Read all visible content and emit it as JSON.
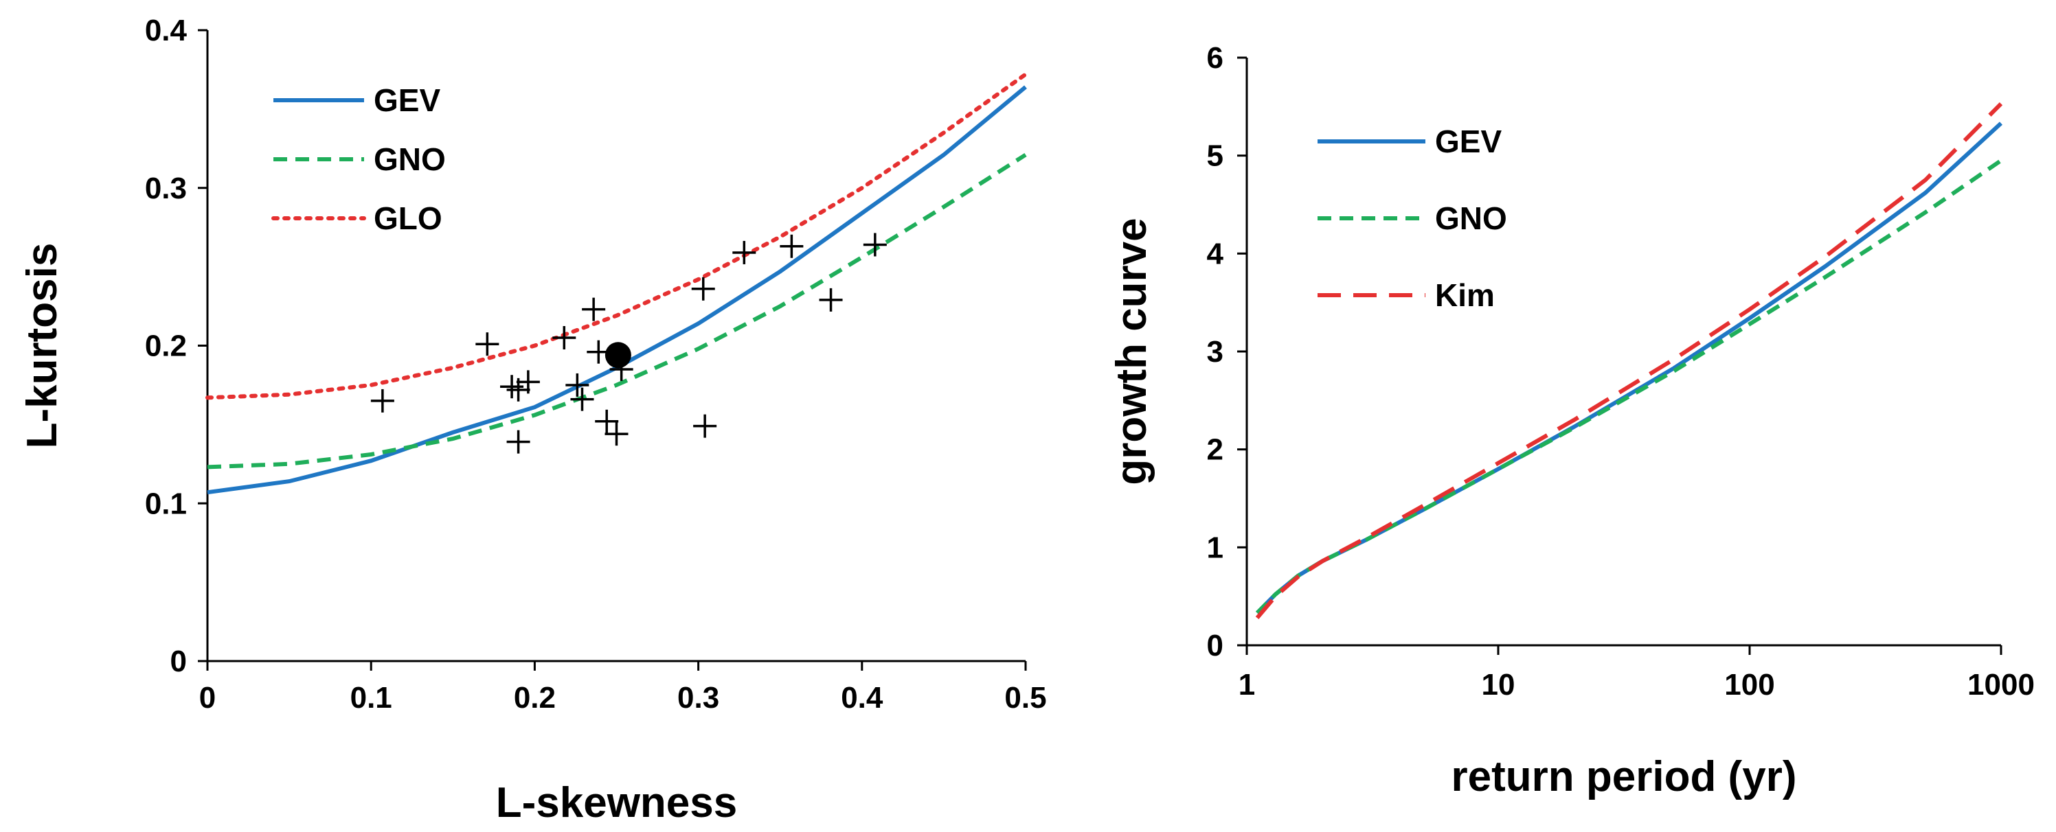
{
  "chart_data": [
    {
      "id": "left",
      "type": "line",
      "xlabel": "L-skewness",
      "ylabel": "L-kurtosis",
      "xlim": [
        0,
        0.5
      ],
      "ylim": [
        0,
        0.4
      ],
      "xticks": [
        "0",
        "0.1",
        "0.2",
        "0.3",
        "0.4",
        "0.5"
      ],
      "yticks": [
        "0",
        "0.1",
        "0.2",
        "0.3",
        "0.4"
      ],
      "legend": [
        "GEV",
        "GNO",
        "GLO"
      ],
      "series": [
        {
          "name": "GEV",
          "color": "#1f77c4",
          "style": "solid",
          "x": [
            0,
            0.05,
            0.1,
            0.15,
            0.2,
            0.25,
            0.3,
            0.35,
            0.4,
            0.45,
            0.5
          ],
          "y": [
            0.107,
            0.114,
            0.127,
            0.145,
            0.161,
            0.186,
            0.214,
            0.247,
            0.284,
            0.321,
            0.364
          ]
        },
        {
          "name": "GNO",
          "color": "#1fae5a",
          "style": "dashed",
          "x": [
            0,
            0.05,
            0.1,
            0.15,
            0.2,
            0.25,
            0.3,
            0.35,
            0.4,
            0.45,
            0.5
          ],
          "y": [
            0.123,
            0.125,
            0.131,
            0.141,
            0.156,
            0.175,
            0.198,
            0.225,
            0.256,
            0.288,
            0.321
          ]
        },
        {
          "name": "GLO",
          "color": "#e53030",
          "style": "dotted",
          "x": [
            0,
            0.05,
            0.1,
            0.15,
            0.2,
            0.25,
            0.3,
            0.35,
            0.4,
            0.45,
            0.5
          ],
          "y": [
            0.167,
            0.169,
            0.175,
            0.186,
            0.2,
            0.219,
            0.242,
            0.269,
            0.3,
            0.335,
            0.372
          ]
        }
      ],
      "points": [
        {
          "x": 0.107,
          "y": 0.165
        },
        {
          "x": 0.171,
          "y": 0.201
        },
        {
          "x": 0.186,
          "y": 0.174
        },
        {
          "x": 0.19,
          "y": 0.139
        },
        {
          "x": 0.19,
          "y": 0.172
        },
        {
          "x": 0.196,
          "y": 0.177
        },
        {
          "x": 0.218,
          "y": 0.205
        },
        {
          "x": 0.226,
          "y": 0.175
        },
        {
          "x": 0.229,
          "y": 0.166
        },
        {
          "x": 0.236,
          "y": 0.223
        },
        {
          "x": 0.239,
          "y": 0.196
        },
        {
          "x": 0.244,
          "y": 0.152
        },
        {
          "x": 0.25,
          "y": 0.144
        },
        {
          "x": 0.253,
          "y": 0.185
        },
        {
          "x": 0.303,
          "y": 0.236
        },
        {
          "x": 0.304,
          "y": 0.149
        },
        {
          "x": 0.328,
          "y": 0.259
        },
        {
          "x": 0.357,
          "y": 0.263
        },
        {
          "x": 0.381,
          "y": 0.229
        },
        {
          "x": 0.408,
          "y": 0.264
        }
      ],
      "average_point": {
        "x": 0.251,
        "y": 0.194
      }
    },
    {
      "id": "right",
      "type": "line",
      "xlabel": "return  period (yr)",
      "ylabel": "growth curve",
      "xscale": "log",
      "xlim": [
        1,
        1000
      ],
      "ylim": [
        0,
        6
      ],
      "xticks": [
        "1",
        "10",
        "100",
        "1000"
      ],
      "yticks": [
        "0",
        "1",
        "2",
        "3",
        "4",
        "5",
        "6"
      ],
      "legend": [
        "GEV",
        "GNO",
        "Kim"
      ],
      "series": [
        {
          "name": "GEV",
          "color": "#1f77c4",
          "style": "solid",
          "x": [
            1.1,
            1.3,
            1.6,
            2,
            3,
            5,
            10,
            20,
            50,
            100,
            200,
            500,
            1000
          ],
          "y": [
            0.33,
            0.52,
            0.71,
            0.86,
            1.08,
            1.38,
            1.8,
            2.23,
            2.83,
            3.34,
            3.87,
            4.62,
            5.33
          ]
        },
        {
          "name": "GNO",
          "color": "#1fae5a",
          "style": "dashed",
          "x": [
            1.1,
            1.3,
            1.6,
            2,
            3,
            5,
            10,
            20,
            50,
            100,
            200,
            500,
            1000
          ],
          "y": [
            0.33,
            0.52,
            0.71,
            0.86,
            1.08,
            1.38,
            1.8,
            2.22,
            2.8,
            3.28,
            3.76,
            4.42,
            4.95
          ]
        },
        {
          "name": "Kim",
          "color": "#e53030",
          "style": "longdash",
          "x": [
            1.1,
            1.3,
            1.6,
            2,
            3,
            5,
            10,
            20,
            50,
            100,
            200,
            500,
            1000
          ],
          "y": [
            0.28,
            0.5,
            0.7,
            0.86,
            1.1,
            1.42,
            1.86,
            2.3,
            2.92,
            3.43,
            3.97,
            4.75,
            5.53
          ]
        }
      ]
    }
  ]
}
